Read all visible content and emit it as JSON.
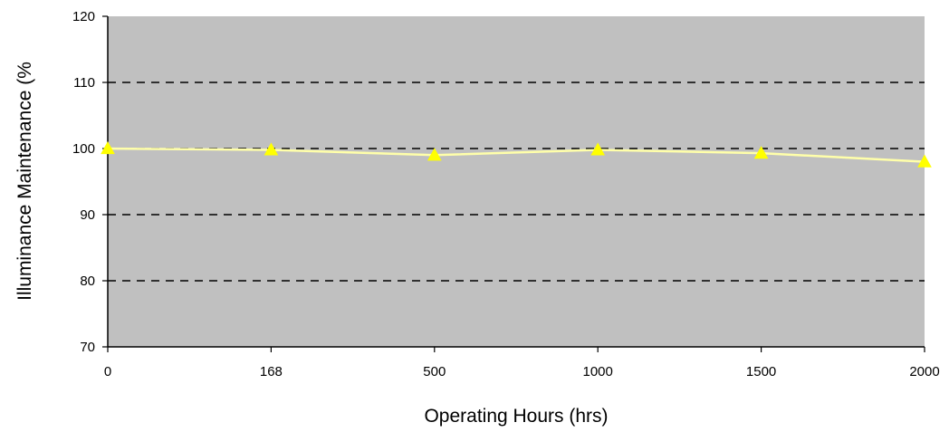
{
  "chart_data": {
    "type": "line",
    "title": "",
    "xlabel": "Operating Hours (hrs)",
    "ylabel": "Illuminance Maintenance (%",
    "categories": [
      "0",
      "168",
      "500",
      "1000",
      "1500",
      "2000"
    ],
    "series": [
      {
        "values": [
          100,
          99.8,
          99,
          99.8,
          99.3,
          98
        ],
        "color": "#ffff00",
        "line_color": "#ffffaa",
        "marker": "triangle"
      }
    ],
    "ylim": [
      70,
      120
    ],
    "yticks": [
      70,
      80,
      90,
      100,
      110,
      120
    ],
    "grid": {
      "y": true,
      "style": "dashed",
      "values": [
        80,
        90,
        100,
        110
      ]
    },
    "plot_background": "#c0c0c0",
    "legend": "none"
  }
}
